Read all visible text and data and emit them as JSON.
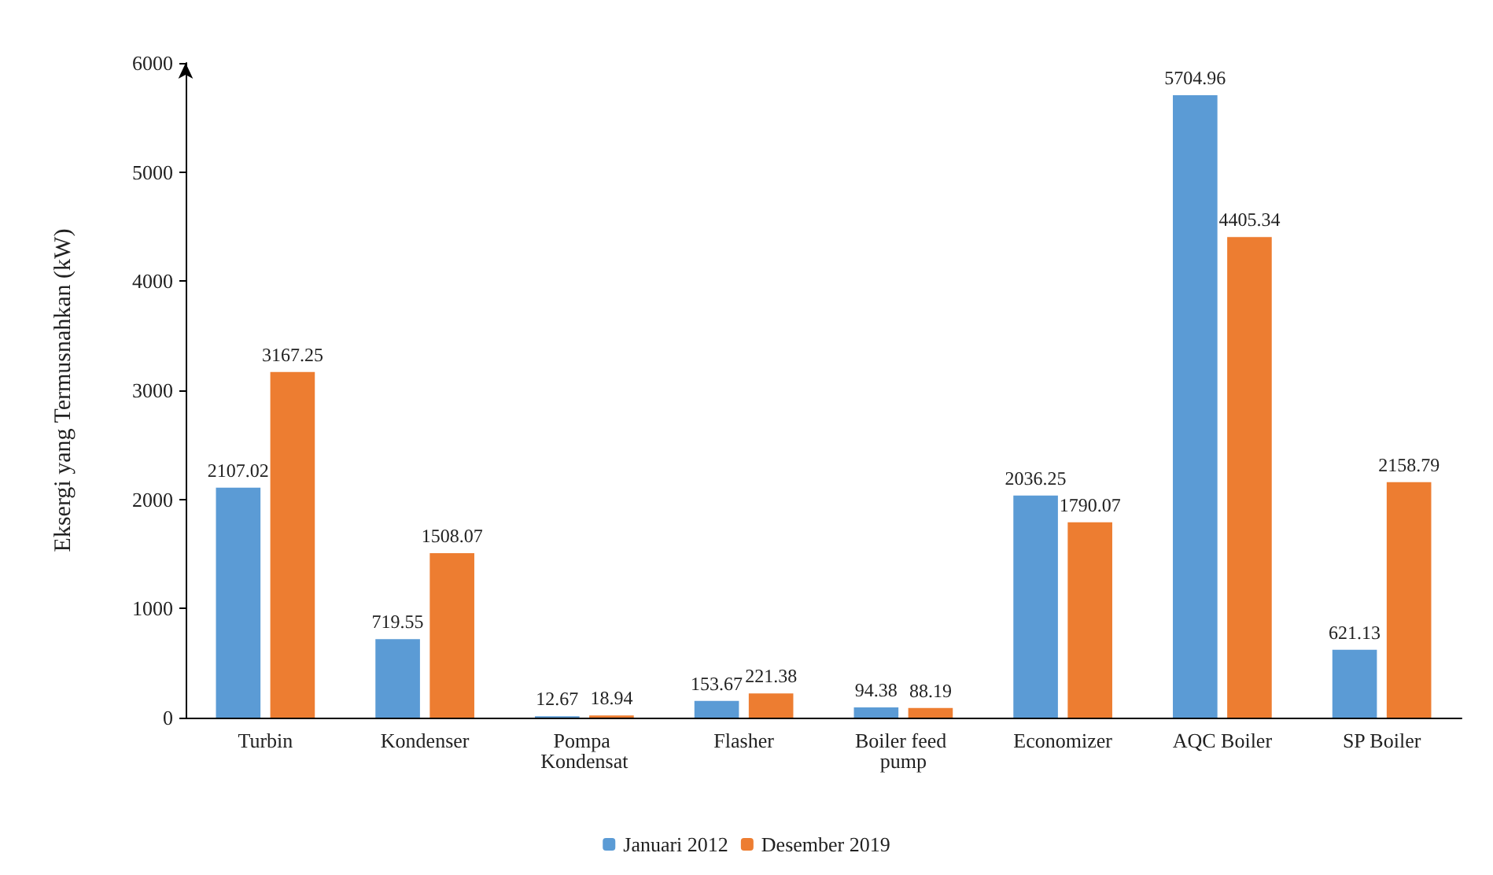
{
  "chart_data": {
    "type": "bar",
    "ylabel": "Eksergi yang Termusnahkan (kW)",
    "categories": [
      "Turbin",
      "Kondenser",
      "Pompa Kondensat",
      "Flasher",
      "Boiler feed pump",
      "Economizer",
      "AQC Boiler",
      "SP Boiler"
    ],
    "series": [
      {
        "name": "Januari 2012",
        "color": "#5b9bd5",
        "values": [
          2107.02,
          719.55,
          12.67,
          153.67,
          94.38,
          2036.25,
          5704.96,
          621.13
        ]
      },
      {
        "name": "Desember 2019",
        "color": "#ed7d31",
        "values": [
          3167.25,
          1508.07,
          18.94,
          221.38,
          88.19,
          1790.07,
          4405.34,
          2158.79
        ]
      }
    ],
    "ylim": [
      0,
      6000
    ],
    "yticks": [
      0,
      1000,
      2000,
      3000,
      4000,
      5000,
      6000
    ],
    "grid": false,
    "legend": "bottom",
    "data_labels": true
  }
}
